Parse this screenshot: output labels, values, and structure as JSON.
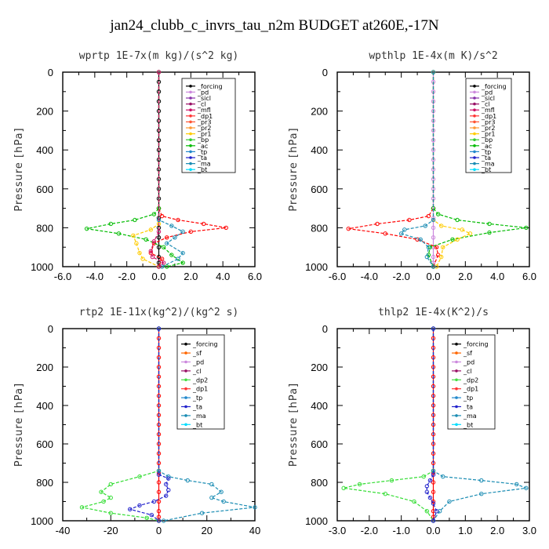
{
  "title": "jan24_clubb_c_invrs_tau_n2m  BUDGET at260E,-17N",
  "chart_data": [
    {
      "type": "line",
      "title": "wprtp  1E-7x(m kg)/(s^2 kg)",
      "ylabel": "Pressure [hPa]",
      "xlim": [
        -6,
        6
      ],
      "ylim": [
        1000,
        0
      ],
      "xticks": [
        "-6.0",
        "-4.0",
        "-2.0",
        "0.0",
        "2.0",
        "4.0",
        "6.0"
      ],
      "yticks": [
        "0",
        "200",
        "400",
        "600",
        "800",
        "1000"
      ],
      "legend": [
        "_forcing",
        "_pd",
        "_sicl",
        "_cl",
        "_mfl",
        "_dp1",
        "_pr3",
        "_pr2",
        "_pr1",
        "_bp",
        "_ac",
        "_tp",
        "_ta",
        "_ma",
        "_bt"
      ],
      "series": [
        {
          "name": "_forcing",
          "color": "#000000",
          "x": [
            0,
            0,
            0,
            0,
            0,
            0,
            0,
            0,
            0,
            0,
            0,
            0,
            0,
            0,
            0,
            0,
            0,
            0,
            0,
            0,
            0,
            0
          ],
          "y": [
            0,
            50,
            100,
            150,
            200,
            250,
            300,
            350,
            400,
            450,
            500,
            550,
            600,
            650,
            700,
            750,
            800,
            850,
            900,
            950,
            980,
            1000
          ]
        },
        {
          "name": "_dp1",
          "color": "#ff0000",
          "x": [
            0,
            0,
            0.2,
            1.2,
            2.8,
            4.2,
            2.0,
            0.5,
            -0.3,
            -0.5,
            0.2,
            0
          ],
          "y": [
            0,
            700,
            740,
            760,
            780,
            800,
            820,
            850,
            880,
            930,
            960,
            1000
          ]
        },
        {
          "name": "_ac",
          "color": "#00bb00",
          "x": [
            0,
            0,
            -0.3,
            -1.5,
            -3.0,
            -4.5,
            -2.5,
            -0.8,
            0.3,
            0.8,
            1.5,
            0.5
          ],
          "y": [
            0,
            700,
            730,
            760,
            780,
            805,
            830,
            860,
            900,
            940,
            980,
            1000
          ]
        },
        {
          "name": "_pr1",
          "color": "#ffcc00",
          "x": [
            0,
            0,
            -0.5,
            -1.6,
            -1.4,
            -1.2,
            -1.0,
            0
          ],
          "y": [
            0,
            780,
            810,
            840,
            880,
            930,
            960,
            1000
          ]
        },
        {
          "name": "_ta",
          "color": "#1a8cb3",
          "x": [
            0,
            0,
            0.8,
            1.5,
            1.0,
            0.5,
            1.5,
            1.2,
            0.2
          ],
          "y": [
            0,
            760,
            790,
            820,
            850,
            880,
            930,
            960,
            1000
          ]
        },
        {
          "name": "_cl",
          "color": "#cc1166",
          "x": [
            0,
            0,
            -0.3,
            -0.5,
            -0.4,
            0.3,
            0
          ],
          "y": [
            0,
            820,
            870,
            920,
            950,
            980,
            1000
          ]
        }
      ]
    },
    {
      "type": "line",
      "title": "wpthlp  1E-4x(m K)/s^2",
      "ylabel": "Pressure [hPa]",
      "xlim": [
        -6,
        6
      ],
      "ylim": [
        1000,
        0
      ],
      "xticks": [
        "-6.0",
        "-4.0",
        "-2.0",
        "0.0",
        "2.0",
        "4.0",
        "6.0"
      ],
      "yticks": [
        "0",
        "200",
        "400",
        "600",
        "800",
        "1000"
      ],
      "legend": [
        "_forcing",
        "_pd",
        "_sicl",
        "_cl",
        "_mfl",
        "_dp1",
        "_pr3",
        "_pr2",
        "_pr1",
        "_bp",
        "_ac",
        "_tp",
        "_ta",
        "_ma",
        "_bt"
      ],
      "series": [
        {
          "name": "_pd",
          "color": "#cc88dd",
          "x": [
            0,
            0,
            0,
            0,
            0,
            0,
            0,
            0,
            0,
            0,
            0,
            0,
            0,
            0,
            0,
            0,
            0,
            0,
            0,
            0,
            0,
            0
          ],
          "y": [
            0,
            50,
            100,
            150,
            200,
            250,
            300,
            350,
            400,
            450,
            500,
            550,
            600,
            650,
            700,
            750,
            800,
            850,
            900,
            950,
            980,
            1000
          ]
        },
        {
          "name": "_dp1",
          "color": "#ff0000",
          "x": [
            0,
            0,
            -0.3,
            -1.5,
            -3.5,
            -5.3,
            -3.0,
            -1.0,
            0.2,
            0.3,
            0
          ],
          "y": [
            0,
            700,
            740,
            760,
            780,
            805,
            830,
            860,
            900,
            940,
            1000
          ]
        },
        {
          "name": "_ac",
          "color": "#00bb00",
          "x": [
            0,
            0,
            0.3,
            1.5,
            3.5,
            5.8,
            3.5,
            1.2,
            -0.2,
            -0.3,
            0
          ],
          "y": [
            0,
            700,
            730,
            760,
            780,
            800,
            825,
            860,
            900,
            940,
            1000
          ]
        },
        {
          "name": "_pr1",
          "color": "#ffcc00",
          "x": [
            0,
            0,
            0.5,
            1.8,
            2.3,
            1.5,
            0.6,
            0.5,
            0.2
          ],
          "y": [
            0,
            760,
            790,
            810,
            830,
            860,
            900,
            950,
            1000
          ]
        },
        {
          "name": "_tp",
          "color": "#1a8cb3",
          "x": [
            0,
            0,
            -0.5,
            -1.8,
            -2.0,
            -0.8,
            -0.3,
            -0.4,
            0
          ],
          "y": [
            0,
            760,
            790,
            810,
            830,
            860,
            900,
            950,
            1000
          ]
        }
      ]
    },
    {
      "type": "line",
      "title": "rtp2  1E-11x(kg^2)/(kg^2 s)",
      "ylabel": "Pressure [hPa]",
      "xlim": [
        -40,
        40
      ],
      "ylim": [
        1000,
        0
      ],
      "xticks": [
        "-40",
        "-20",
        "0",
        "20",
        "40"
      ],
      "yticks": [
        "0",
        "200",
        "400",
        "600",
        "800",
        "1000"
      ],
      "legend": [
        "_forcing",
        "_sf",
        "_pd",
        "_cl",
        "_dp2",
        "_dp1",
        "_tp",
        "_ta",
        "_ma",
        "_bt"
      ],
      "series": [
        {
          "name": "_forcing",
          "color": "#ff0000",
          "x": [
            0,
            0,
            0,
            0,
            0,
            0,
            0,
            0,
            0,
            0,
            0,
            0,
            0,
            0,
            0,
            0,
            0,
            0,
            0,
            0,
            0,
            0
          ],
          "y": [
            0,
            50,
            100,
            150,
            200,
            250,
            300,
            350,
            400,
            450,
            500,
            550,
            600,
            650,
            700,
            750,
            800,
            850,
            900,
            950,
            980,
            1000
          ]
        },
        {
          "name": "_dp1",
          "color": "#33dd33",
          "x": [
            0,
            0,
            -8,
            -20,
            -24,
            -20,
            -23,
            -32,
            -20,
            -5,
            0
          ],
          "y": [
            0,
            740,
            770,
            810,
            850,
            880,
            900,
            930,
            960,
            985,
            1000
          ]
        },
        {
          "name": "_tp",
          "color": "#1a8cb3",
          "x": [
            0,
            0,
            4,
            12,
            22,
            26,
            22,
            27,
            40,
            18,
            2
          ],
          "y": [
            0,
            740,
            770,
            790,
            810,
            850,
            880,
            900,
            930,
            960,
            1000
          ]
        },
        {
          "name": "_ta",
          "color": "#2222cc",
          "x": [
            0,
            0,
            4,
            3,
            4,
            3,
            -2,
            -8,
            -12,
            -3,
            0
          ],
          "y": [
            0,
            760,
            780,
            810,
            840,
            870,
            900,
            920,
            940,
            970,
            1000
          ]
        }
      ]
    },
    {
      "type": "line",
      "title": "thlp2  1E-4x(K^2)/s",
      "ylabel": "Pressure [hPa]",
      "xlim": [
        -3,
        3
      ],
      "ylim": [
        1000,
        0
      ],
      "xticks": [
        "-3.0",
        "-2.0",
        "-1.0",
        "0.0",
        "1.0",
        "2.0",
        "3.0"
      ],
      "yticks": [
        "0",
        "200",
        "400",
        "600",
        "800",
        "1000"
      ],
      "legend": [
        "_forcing",
        "_sf",
        "_pd",
        "_cl",
        "_dp2",
        "_dp1",
        "_tp",
        "_ta",
        "_ma",
        "_bt"
      ],
      "series": [
        {
          "name": "_forcing",
          "color": "#ff0000",
          "x": [
            0,
            0,
            0,
            0,
            0,
            0,
            0,
            0,
            0,
            0,
            0,
            0,
            0,
            0,
            0,
            0,
            0,
            0,
            0,
            0,
            0,
            0
          ],
          "y": [
            0,
            50,
            100,
            150,
            200,
            250,
            300,
            350,
            400,
            450,
            500,
            550,
            600,
            650,
            700,
            750,
            800,
            850,
            900,
            950,
            980,
            1000
          ]
        },
        {
          "name": "_dp1",
          "color": "#33dd33",
          "x": [
            0,
            0,
            -0.3,
            -1.3,
            -2.3,
            -2.8,
            -1.5,
            -0.6,
            -0.2,
            0
          ],
          "y": [
            0,
            740,
            770,
            790,
            810,
            830,
            860,
            900,
            950,
            1000
          ]
        },
        {
          "name": "_tp",
          "color": "#1a8cb3",
          "x": [
            0,
            0,
            0.3,
            1.5,
            2.6,
            2.9,
            1.5,
            0.5,
            0.2,
            0
          ],
          "y": [
            0,
            740,
            770,
            790,
            810,
            830,
            860,
            900,
            950,
            1000
          ]
        },
        {
          "name": "_ta",
          "color": "#2222cc",
          "x": [
            0,
            0,
            -0.1,
            -0.2,
            -0.2,
            -0.1,
            0,
            0.1,
            0
          ],
          "y": [
            0,
            760,
            790,
            820,
            850,
            880,
            910,
            950,
            1000
          ]
        }
      ]
    }
  ]
}
